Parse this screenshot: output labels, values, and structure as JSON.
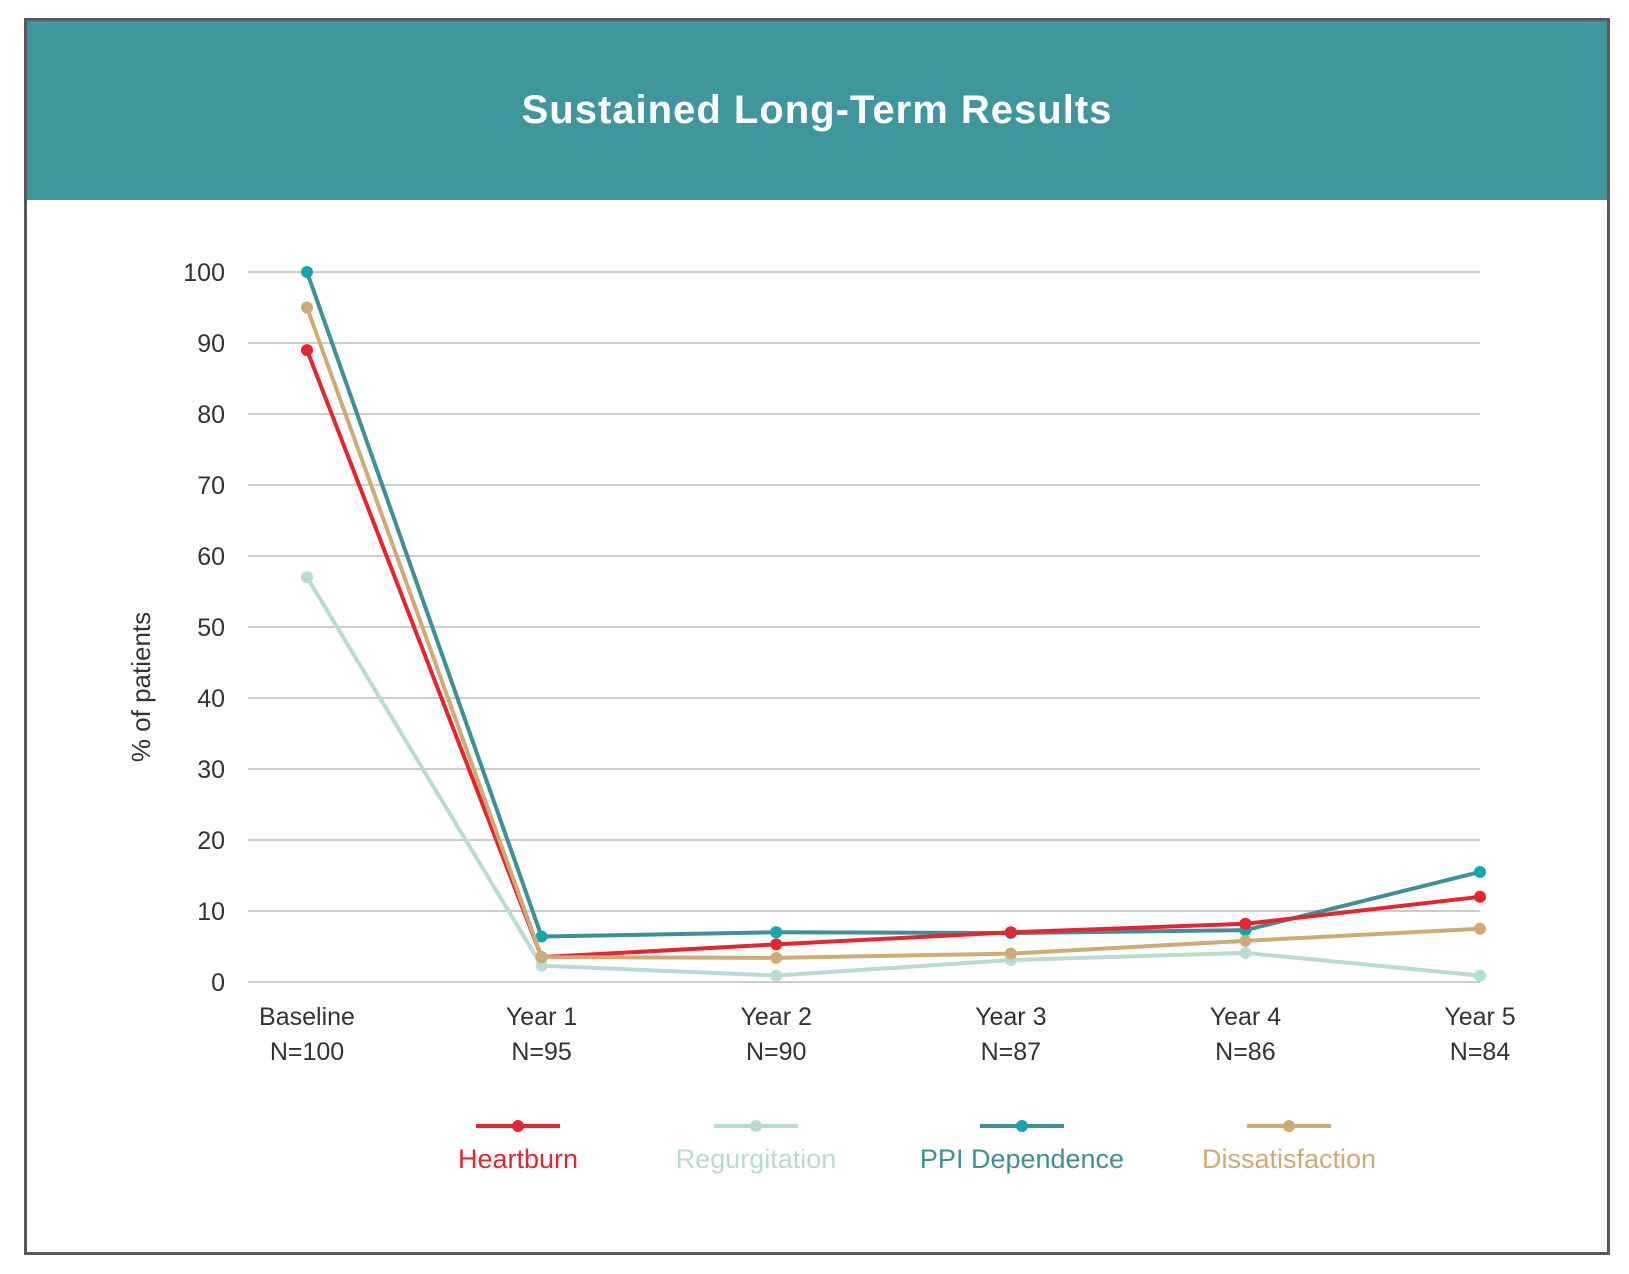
{
  "title": "Sustained Long-Term Results",
  "colors": {
    "header_bg": "#3f969c",
    "frame_border": "#555a5c",
    "grid": "#cccccc"
  },
  "chart_data": {
    "type": "line",
    "title": "Sustained Long-Term Results",
    "ylabel": "% of patients",
    "xlabel": "",
    "ylim": [
      0,
      100
    ],
    "yticks": [
      0,
      10,
      20,
      30,
      40,
      50,
      60,
      70,
      80,
      90,
      100
    ],
    "grid": true,
    "legend_position": "bottom",
    "categories": [
      [
        "Baseline",
        "N=100"
      ],
      [
        "Year 1",
        "N=95"
      ],
      [
        "Year 2",
        "N=90"
      ],
      [
        "Year 3",
        "N=87"
      ],
      [
        "Year 4",
        "N=86"
      ],
      [
        "Year 5",
        "N=84"
      ]
    ],
    "series": [
      {
        "name": "Regurgitation",
        "color": "#b8dccf",
        "marker": "#b8dccf",
        "values": [
          57,
          2.3,
          0.9,
          3.1,
          4.1,
          0.9
        ]
      },
      {
        "name": "PPI Dependence",
        "color": "#3f8f96",
        "marker": "#12a6b0",
        "values": [
          100,
          6.4,
          7.0,
          6.9,
          7.3,
          15.5
        ]
      },
      {
        "name": "Heartburn",
        "color": "#e32630",
        "marker": "#e32630",
        "values": [
          89,
          3.5,
          5.3,
          7.0,
          8.2,
          12.0
        ]
      },
      {
        "name": "Dissatisfaction",
        "color": "#cfab74",
        "marker": "#cfab74",
        "values": [
          95,
          3.5,
          3.4,
          4.0,
          5.8,
          7.5
        ]
      }
    ],
    "legend_order": [
      "Heartburn",
      "Regurgitation",
      "PPI Dependence",
      "Dissatisfaction"
    ]
  }
}
